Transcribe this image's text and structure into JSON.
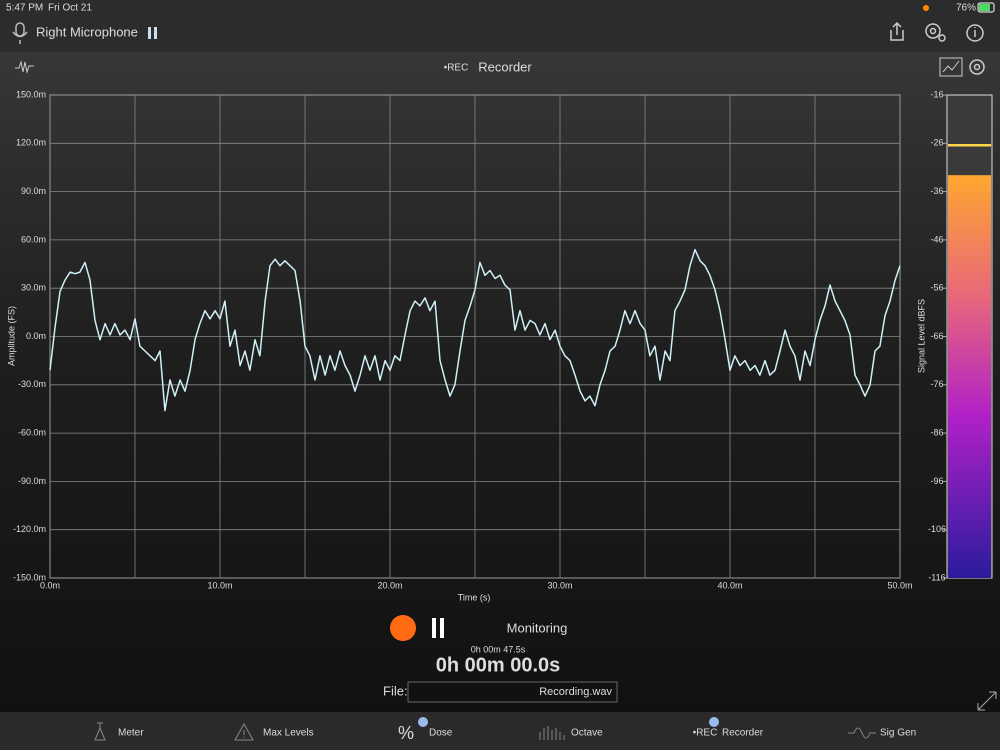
{
  "status_bar": {
    "time": "5:47 PM",
    "date": "Fri Oct 21",
    "battery": "76%"
  },
  "header": {
    "input": "Right Microphone",
    "mode_badge": "•REC",
    "title": "Recorder"
  },
  "chart_data": {
    "type": "line",
    "xlabel": "Time (s)",
    "ylabel": "Amplitude (FS)",
    "xlim": [
      0,
      50
    ],
    "ylim": [
      -150,
      150
    ],
    "xticks": [
      {
        "value": 0,
        "label": "0.0m"
      },
      {
        "value": 10,
        "label": "10.0m"
      },
      {
        "value": 20,
        "label": "20.0m"
      },
      {
        "value": 30,
        "label": "30.0m"
      },
      {
        "value": 40,
        "label": "40.0m"
      },
      {
        "value": 50,
        "label": "50.0m"
      }
    ],
    "xgrid": [
      0,
      5,
      10,
      15,
      20,
      25,
      30,
      35,
      40,
      45,
      50
    ],
    "yticks": [
      {
        "value": 150,
        "label": "150.0m"
      },
      {
        "value": 120,
        "label": "120.0m"
      },
      {
        "value": 90,
        "label": "90.0m"
      },
      {
        "value": 60,
        "label": "60.0m"
      },
      {
        "value": 30,
        "label": "30.0m"
      },
      {
        "value": 0,
        "label": "0.0m"
      },
      {
        "value": -30,
        "label": "-30.0m"
      },
      {
        "value": -60,
        "label": "-60.0m"
      },
      {
        "value": -90,
        "label": "-90.0m"
      },
      {
        "value": -120,
        "label": "-120.0m"
      },
      {
        "value": -150,
        "label": "-150.0m"
      }
    ],
    "grid": true,
    "x": [
      0,
      0.29,
      0.59,
      0.88,
      1.18,
      1.47,
      1.76,
      2.06,
      2.35,
      2.65,
      2.94,
      3.24,
      3.53,
      3.82,
      4.12,
      4.41,
      4.71,
      5,
      5.29,
      5.59,
      5.88,
      6.18,
      6.47,
      6.76,
      7.06,
      7.35,
      7.65,
      7.94,
      8.24,
      8.53,
      8.82,
      9.12,
      9.41,
      9.71,
      10,
      10.29,
      10.59,
      10.88,
      11.18,
      11.47,
      11.76,
      12.06,
      12.35,
      12.65,
      12.94,
      13.24,
      13.53,
      13.82,
      14.12,
      14.41,
      14.71,
      15,
      15.29,
      15.59,
      15.88,
      16.18,
      16.47,
      16.76,
      17.06,
      17.35,
      17.65,
      17.94,
      18.24,
      18.53,
      18.82,
      19.12,
      19.41,
      19.71,
      20,
      20.29,
      20.59,
      20.88,
      21.18,
      21.47,
      21.76,
      22.06,
      22.35,
      22.65,
      22.94,
      23.24,
      23.53,
      23.82,
      24.12,
      24.41,
      24.71,
      25,
      25.29,
      25.59,
      25.88,
      26.18,
      26.47,
      26.76,
      27.06,
      27.35,
      27.65,
      27.94,
      28.24,
      28.53,
      28.82,
      29.12,
      29.41,
      29.71,
      30,
      30.29,
      30.59,
      30.88,
      31.18,
      31.47,
      31.76,
      32.06,
      32.35,
      32.65,
      32.94,
      33.24,
      33.53,
      33.82,
      34.12,
      34.41,
      34.71,
      35,
      35.29,
      35.59,
      35.88,
      36.18,
      36.47,
      36.76,
      37.06,
      37.35,
      37.65,
      37.94,
      38.24,
      38.53,
      38.82,
      39.12,
      39.41,
      39.71,
      40,
      40.29,
      40.59,
      40.88,
      41.18,
      41.47,
      41.76,
      42.06,
      42.35,
      42.65,
      42.94,
      43.24,
      43.53,
      43.82,
      44.12,
      44.41,
      44.71,
      45,
      45.29,
      45.59,
      45.88,
      46.18,
      46.47,
      46.76,
      47.06,
      47.35,
      47.65,
      47.94,
      48.24,
      48.53,
      48.82,
      49.12,
      49.41,
      49.71,
      50
    ],
    "series": [
      {
        "color": "#cfeff7",
        "values": [
          -21,
          5,
          28,
          35,
          40,
          39,
          40,
          46,
          35,
          10,
          -2,
          8,
          1,
          8,
          1,
          4,
          -2,
          11,
          -6,
          -9,
          -12,
          -15,
          -9,
          -46,
          -27,
          -37,
          -27,
          -34,
          -21,
          -2,
          8,
          16,
          11,
          16,
          11,
          22,
          -6,
          4,
          -18,
          -9,
          -21,
          -2,
          -12,
          22,
          44,
          48,
          44,
          47,
          44,
          41,
          22,
          -6,
          -12,
          -27,
          -12,
          -24,
          -12,
          -21,
          -9,
          -18,
          -24,
          -34,
          -24,
          -12,
          -21,
          -12,
          -27,
          -15,
          -21,
          -12,
          -15,
          1,
          16,
          22,
          19,
          24,
          16,
          22,
          -15,
          -27,
          -37,
          -30,
          -9,
          10,
          19,
          29,
          46,
          38,
          41,
          36,
          38,
          32,
          29,
          4,
          16,
          4,
          10,
          8,
          1,
          8,
          -2,
          4,
          -6,
          -12,
          -15,
          -24,
          -34,
          -40,
          -37,
          -43,
          -30,
          -21,
          -9,
          -6,
          4,
          16,
          8,
          16,
          8,
          4,
          -12,
          -6,
          -27,
          -9,
          -15,
          16,
          22,
          29,
          44,
          54,
          47,
          44,
          38,
          29,
          16,
          -2,
          -21,
          -12,
          -18,
          -15,
          -21,
          -18,
          -24,
          -15,
          -24,
          -21,
          -9,
          4,
          -6,
          -12,
          -27,
          -9,
          -18,
          -2,
          10,
          19,
          32,
          22,
          16,
          10,
          1,
          -24,
          -30,
          -37,
          -30,
          -9,
          -6,
          13,
          22,
          35,
          44
        ]
      }
    ]
  },
  "level_meter": {
    "ylabel": "Signal Level dBFS",
    "ylim": [
      -116,
      -16
    ],
    "yticks": [
      -16,
      -26,
      -36,
      -46,
      -56,
      -66,
      -76,
      -86,
      -96,
      -106,
      -116
    ],
    "level": -32.6,
    "peak": -26.4
  },
  "controls": {
    "status": "Monitoring",
    "elapsed": "0h 00m 47.5s",
    "record_time": "0h 00m 00.0s",
    "file_label": "File:",
    "file_name": "Recording.wav"
  },
  "tabs": [
    "Meter",
    "Max Levels",
    "Dose",
    "Octave",
    "Recorder",
    "Sig Gen"
  ],
  "tab_badge": "•REC"
}
